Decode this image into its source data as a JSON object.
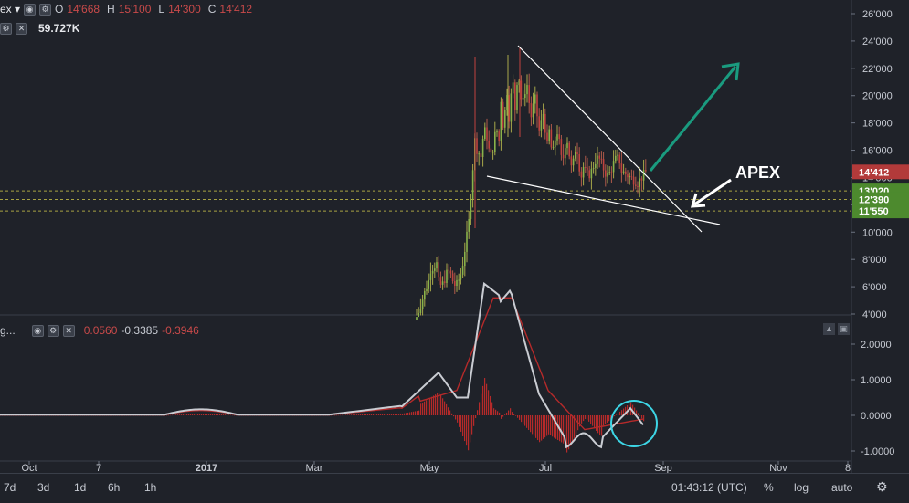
{
  "header": {
    "symbol_suffix": "ex ▾",
    "ohlc": [
      {
        "k": "O",
        "v": "14'668"
      },
      {
        "k": "H",
        "v": "15'100"
      },
      {
        "k": "L",
        "v": "14'300"
      },
      {
        "k": "C",
        "v": "14'412"
      }
    ],
    "volume": "59.727K"
  },
  "indicator_header": {
    "name_suffix": "g...",
    "values": [
      "0.0560",
      "-0.3385",
      "-0.3946"
    ]
  },
  "chart_data": [
    {
      "type": "candlestick",
      "price_ticks": [
        "26'000",
        "24'000",
        "22'000",
        "20'000",
        "18'000",
        "16'000",
        "14'000",
        "12'000",
        "10'000",
        "8'000",
        "6'000",
        "4'000"
      ],
      "price_tick_values": [
        26000,
        24000,
        22000,
        20000,
        18000,
        16000,
        14000,
        12000,
        10000,
        8000,
        6000,
        4000
      ],
      "ylim": [
        4000,
        26000
      ],
      "last_price": {
        "label": "14'412",
        "value": 14412,
        "color": "#b23a3a"
      },
      "levels": [
        {
          "label": "13'020",
          "value": 13020,
          "color": "#4d8a2e"
        },
        {
          "label": "12'390",
          "value": 12390,
          "color": "#4d8a2e"
        },
        {
          "label": "11'550",
          "value": 11550,
          "color": "#4d8a2e"
        }
      ],
      "annotation": "APEX",
      "annotation_colors": {
        "arrow_up": "#1a9b7f",
        "apex_arrow": "#ffffff",
        "trendlines": "#ffffff"
      }
    },
    {
      "type": "line",
      "y_ticks": [
        "2.0000",
        "1.0000",
        "0.0000",
        "-1.0000"
      ],
      "y_tick_values": [
        2,
        1,
        0,
        -1
      ],
      "colors": {
        "macd": "#c9ccd2",
        "signal": "#b52a2a",
        "histogram": "#b52a2a",
        "circle": "#3dd6e6"
      }
    }
  ],
  "x_axis": [
    "Oct",
    "7",
    "2017",
    "Mar",
    "May",
    "Jul",
    "Sep",
    "Nov",
    "8"
  ],
  "bottom_bar": {
    "timeframes": [
      "7d",
      "3d",
      "1d",
      "6h",
      "1h"
    ],
    "clock": "01:43:12 (UTC)",
    "percent": "%",
    "log": "log",
    "auto": "auto"
  }
}
